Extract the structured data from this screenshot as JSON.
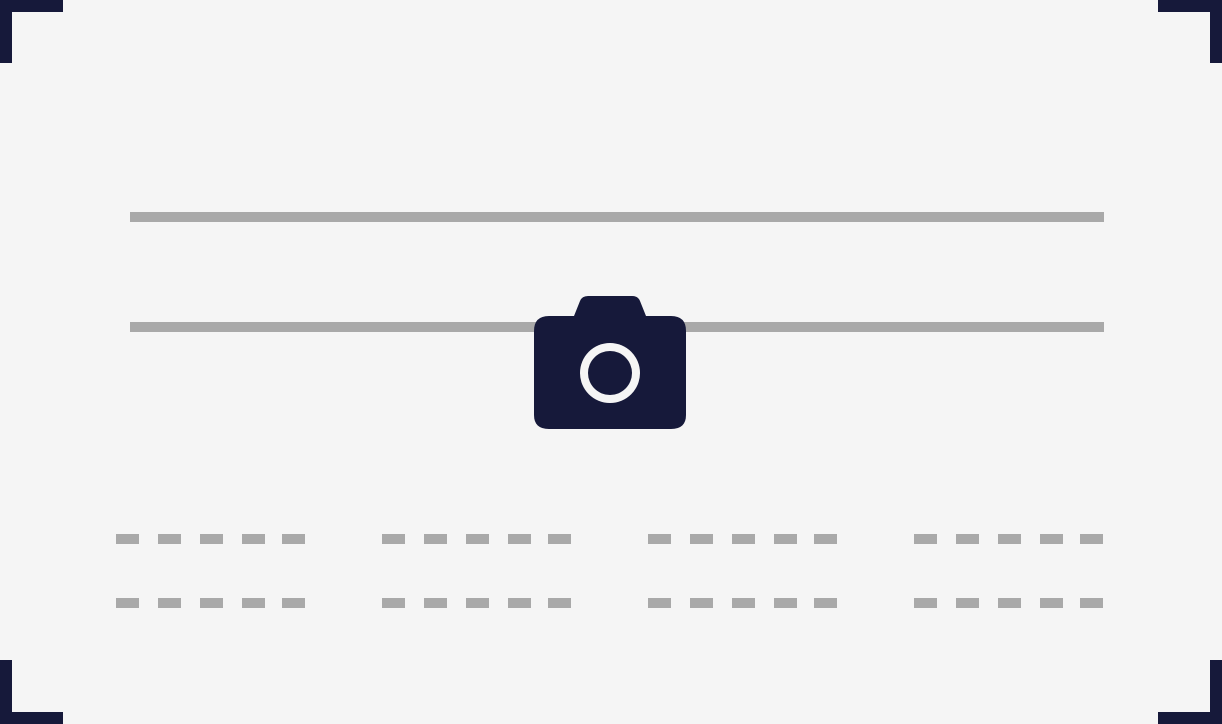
{
  "colors": {
    "background": "#f5f5f5",
    "frame": "#16193a",
    "placeholder": "#a9a9a9"
  },
  "icons": {
    "center": "camera-icon",
    "frame_corners": "viewfinder-corner"
  },
  "dash_groups_per_row": 4,
  "dashes_per_group": 5
}
